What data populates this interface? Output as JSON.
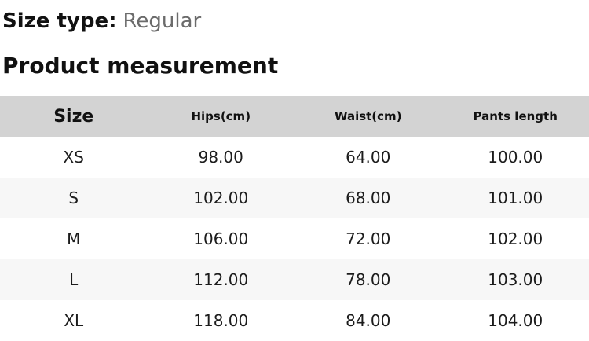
{
  "header": {
    "size_type_label": "Size type:",
    "size_type_value": "Regular",
    "section_title": "Product measurement"
  },
  "table": {
    "columns": [
      "Size",
      "Hips(cm)",
      "Waist(cm)",
      "Pants length"
    ],
    "rows": [
      {
        "size": "XS",
        "hips": "98.00",
        "waist": "64.00",
        "pants_length": "100.00"
      },
      {
        "size": "S",
        "hips": "102.00",
        "waist": "68.00",
        "pants_length": "101.00"
      },
      {
        "size": "M",
        "hips": "106.00",
        "waist": "72.00",
        "pants_length": "102.00"
      },
      {
        "size": "L",
        "hips": "112.00",
        "waist": "78.00",
        "pants_length": "103.00"
      },
      {
        "size": "XL",
        "hips": "118.00",
        "waist": "84.00",
        "pants_length": "104.00"
      }
    ]
  },
  "colors": {
    "header_row_bg": "#d3d3d3",
    "stripe_row_bg": "#f7f7f7",
    "text": "#111111",
    "muted_text": "#6b6b6b",
    "page_bg": "#ffffff"
  }
}
